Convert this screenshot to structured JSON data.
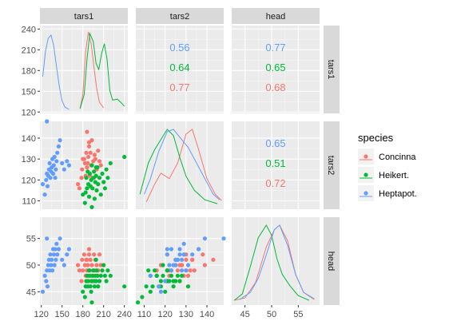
{
  "chart_data": {
    "type": "scatter",
    "variables": [
      "tars1",
      "tars2",
      "head"
    ],
    "ranges": {
      "tars1": [
        118,
        245
      ],
      "tars2": [
        106,
        148
      ],
      "head": [
        42.5,
        59
      ]
    },
    "ticks": {
      "tars1": [
        120,
        150,
        180,
        210,
        240
      ],
      "tars2": [
        110,
        120,
        130,
        140
      ],
      "head": [
        45,
        50,
        55
      ]
    },
    "tick_labels": {
      "tars1": [
        "120",
        "150",
        "180",
        "210",
        "240"
      ],
      "tars2": [
        "110",
        "120",
        "130",
        "140"
      ],
      "head": [
        "45",
        "50",
        "55"
      ]
    },
    "grid": true,
    "legend": {
      "title": "species",
      "position": "right",
      "entries": [
        {
          "name": "Concinna",
          "color": "#F8766D"
        },
        {
          "name": "Heikert.",
          "color": "#00BA38"
        },
        {
          "name": "Heptapot.",
          "color": "#619CFF"
        }
      ]
    },
    "correlations": {
      "tars1_tars2": [
        {
          "species": "Heptapot.",
          "value": "0.56"
        },
        {
          "species": "Heikert.",
          "value": "0.64"
        },
        {
          "species": "Concinna",
          "value": "0.77"
        }
      ],
      "tars1_head": [
        {
          "species": "Heptapot.",
          "value": "0.77"
        },
        {
          "species": "Heikert.",
          "value": "0.65"
        },
        {
          "species": "Concinna",
          "value": "0.68"
        }
      ],
      "tars2_head": [
        {
          "species": "Heptapot.",
          "value": "0.65"
        },
        {
          "species": "Heikert.",
          "value": "0.51"
        },
        {
          "species": "Concinna",
          "value": "0.72"
        }
      ]
    },
    "density": {
      "tars1": {
        "Concinna": [
          [
            176,
            0.02
          ],
          [
            180,
            0.2
          ],
          [
            184,
            0.75
          ],
          [
            188,
            1.0
          ],
          [
            192,
            0.85
          ],
          [
            196,
            0.55
          ],
          [
            200,
            0.28
          ],
          [
            204,
            0.1
          ],
          [
            210,
            0.03
          ]
        ],
        "Heikert.": [
          [
            176,
            0.02
          ],
          [
            182,
            0.2
          ],
          [
            186,
            0.65
          ],
          [
            190,
            0.98
          ],
          [
            195,
            0.88
          ],
          [
            199,
            0.6
          ],
          [
            203,
            0.52
          ],
          [
            207,
            0.72
          ],
          [
            211,
            0.85
          ],
          [
            215,
            0.65
          ],
          [
            219,
            0.25
          ],
          [
            223,
            0.13
          ],
          [
            230,
            0.14
          ],
          [
            235,
            0.1
          ],
          [
            240,
            0.05
          ]
        ],
        "Heptapot.": [
          [
            122,
            0.43
          ],
          [
            126,
            0.75
          ],
          [
            130,
            0.92
          ],
          [
            134,
            0.96
          ],
          [
            138,
            0.82
          ],
          [
            142,
            0.55
          ],
          [
            146,
            0.3
          ],
          [
            150,
            0.12
          ],
          [
            154,
            0.04
          ],
          [
            160,
            0.01
          ]
        ]
      },
      "tars2": {
        "Concinna": [
          [
            111,
            0.05
          ],
          [
            115,
            0.28
          ],
          [
            118,
            0.42
          ],
          [
            122,
            0.35
          ],
          [
            126,
            0.55
          ],
          [
            130,
            0.92
          ],
          [
            133,
            0.98
          ],
          [
            136,
            0.72
          ],
          [
            140,
            0.35
          ],
          [
            144,
            0.15
          ],
          [
            147,
            0.07
          ]
        ],
        "Heikert.": [
          [
            108,
            0.15
          ],
          [
            112,
            0.55
          ],
          [
            115,
            0.72
          ],
          [
            118,
            0.85
          ],
          [
            121,
            0.98
          ],
          [
            124,
            0.9
          ],
          [
            127,
            0.62
          ],
          [
            130,
            0.38
          ],
          [
            134,
            0.2
          ],
          [
            139,
            0.08
          ],
          [
            145,
            0.03
          ]
        ],
        "Heptapot.": [
          [
            110,
            0.15
          ],
          [
            113,
            0.35
          ],
          [
            117,
            0.7
          ],
          [
            121,
            0.95
          ],
          [
            124,
            0.98
          ],
          [
            127,
            0.88
          ],
          [
            131,
            0.75
          ],
          [
            135,
            0.55
          ],
          [
            139,
            0.35
          ],
          [
            143,
            0.15
          ],
          [
            146,
            0.08
          ]
        ]
      },
      "head": {
        "Concinna": [
          [
            43,
            0.02
          ],
          [
            45,
            0.05
          ],
          [
            47,
            0.25
          ],
          [
            49,
            0.7
          ],
          [
            50.5,
            0.92
          ],
          [
            51.5,
            0.98
          ],
          [
            53,
            0.78
          ],
          [
            54.5,
            0.35
          ],
          [
            56,
            0.12
          ],
          [
            58,
            0.03
          ]
        ],
        "Heikert.": [
          [
            43,
            0.02
          ],
          [
            44.5,
            0.1
          ],
          [
            46,
            0.45
          ],
          [
            47.5,
            0.82
          ],
          [
            49,
            0.98
          ],
          [
            50,
            0.85
          ],
          [
            51,
            0.55
          ],
          [
            52,
            0.35
          ],
          [
            53.5,
            0.2
          ],
          [
            55,
            0.08
          ],
          [
            57,
            0.02
          ]
        ],
        "Heptapot.": [
          [
            44,
            0.03
          ],
          [
            46,
            0.12
          ],
          [
            47.5,
            0.3
          ],
          [
            49,
            0.6
          ],
          [
            50.5,
            0.92
          ],
          [
            51.5,
            0.98
          ],
          [
            53,
            0.72
          ],
          [
            54.5,
            0.35
          ],
          [
            56,
            0.12
          ],
          [
            58,
            0.04
          ]
        ]
      }
    },
    "points": {
      "Concinna": [
        [
          173,
          118,
          50
        ],
        [
          175,
          116,
          49
        ],
        [
          178,
          121,
          47
        ],
        [
          179,
          125,
          51
        ],
        [
          180,
          130,
          49
        ],
        [
          182,
          130,
          52
        ],
        [
          183,
          128,
          50
        ],
        [
          184,
          122,
          48
        ],
        [
          185,
          133,
          51
        ],
        [
          186,
          126,
          49
        ],
        [
          187,
          128,
          50
        ],
        [
          188,
          131,
          48
        ],
        [
          189,
          138,
          52
        ],
        [
          190,
          122,
          49
        ],
        [
          191,
          133,
          51
        ],
        [
          192,
          127,
          47
        ],
        [
          193,
          139,
          50
        ],
        [
          195,
          129,
          48
        ],
        [
          196,
          121,
          52
        ],
        [
          197,
          132,
          49
        ],
        [
          198,
          130,
          51
        ],
        [
          200,
          125,
          50
        ],
        [
          202,
          134,
          49
        ],
        [
          204,
          129,
          52
        ],
        [
          206,
          127,
          50
        ],
        [
          186,
          143,
          51
        ],
        [
          189,
          136,
          53
        ]
      ],
      "Heikert.": [
        [
          180,
          113,
          45
        ],
        [
          183,
          109,
          44
        ],
        [
          184,
          114,
          46
        ],
        [
          185,
          121,
          47
        ],
        [
          186,
          116,
          48
        ],
        [
          187,
          124,
          46
        ],
        [
          188,
          118,
          47
        ],
        [
          189,
          112,
          49
        ],
        [
          190,
          123,
          48
        ],
        [
          191,
          117,
          46
        ],
        [
          192,
          120,
          45
        ],
        [
          193,
          127,
          47
        ],
        [
          194,
          116,
          48
        ],
        [
          195,
          121,
          49
        ],
        [
          196,
          124,
          47
        ],
        [
          197,
          111,
          46
        ],
        [
          198,
          119,
          48
        ],
        [
          199,
          122,
          47
        ],
        [
          200,
          115,
          49
        ],
        [
          201,
          126,
          48
        ],
        [
          202,
          118,
          46
        ],
        [
          204,
          121,
          47
        ],
        [
          206,
          113,
          48
        ],
        [
          208,
          123,
          49
        ],
        [
          210,
          119,
          50
        ],
        [
          212,
          116,
          48
        ],
        [
          214,
          125,
          47
        ],
        [
          216,
          121,
          49
        ],
        [
          220,
          128,
          48
        ],
        [
          240,
          131,
          46
        ],
        [
          193,
          107,
          43
        ],
        [
          199,
          126,
          51
        ]
      ],
      "Heptapot.": [
        [
          122,
          118,
          45
        ],
        [
          125,
          113,
          48
        ],
        [
          127,
          120,
          47
        ],
        [
          128,
          123,
          49
        ],
        [
          129,
          117,
          46
        ],
        [
          130,
          122,
          50
        ],
        [
          131,
          125,
          51
        ],
        [
          132,
          128,
          49
        ],
        [
          133,
          121,
          52
        ],
        [
          134,
          124,
          50
        ],
        [
          135,
          126,
          51
        ],
        [
          136,
          130,
          49
        ],
        [
          137,
          123,
          53
        ],
        [
          138,
          127,
          52
        ],
        [
          139,
          131,
          50
        ],
        [
          140,
          121,
          53
        ],
        [
          141,
          125,
          51
        ],
        [
          142,
          129,
          54
        ],
        [
          143,
          133,
          52
        ],
        [
          145,
          136,
          53
        ],
        [
          147,
          139,
          55
        ],
        [
          150,
          128,
          51
        ],
        [
          153,
          125,
          50
        ],
        [
          157,
          129,
          52
        ],
        [
          160,
          127,
          53
        ],
        [
          128,
          148,
          55
        ]
      ]
    }
  }
}
